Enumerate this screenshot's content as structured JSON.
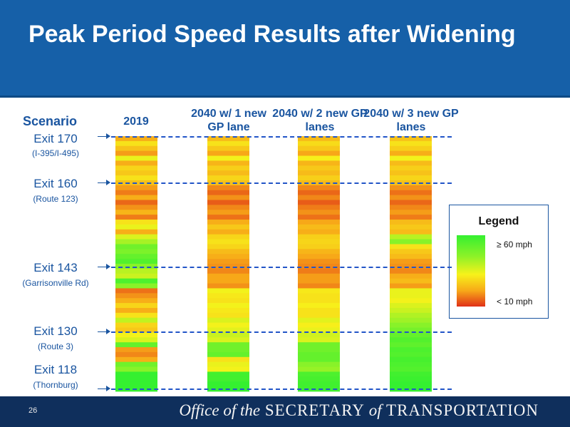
{
  "slide": {
    "title": "Peak Period Speed Results after Widening",
    "page_number": "26"
  },
  "footer": {
    "org_prefix": "Office of the",
    "org_main": "SECRETARY",
    "org_of": "of",
    "org_end": "TRANSPORTATION"
  },
  "colors": {
    "title_bar": "#1660a8",
    "footer": "#0f2f5c",
    "label_blue": "#1a55a0",
    "dash_line": "#2255c8"
  },
  "chart_data": {
    "type": "heatmap",
    "row_axis_label": "Scenario",
    "columns": [
      "2019",
      "2040 w/ 1 new GP lane",
      "2040 w/ 2 new GP lanes",
      "2040 w/ 3 new GP lanes"
    ],
    "exits": [
      {
        "name": "Exit 170",
        "sub": "(I-395/I-495)"
      },
      {
        "name": "Exit 160",
        "sub": "(Route 123)"
      },
      {
        "name": "Exit 143",
        "sub": "(Garrisonville Rd)"
      },
      {
        "name": "Exit 130",
        "sub": "(Route 3)"
      },
      {
        "name": "Exit 118",
        "sub": "(Thornburg)"
      }
    ],
    "legend": {
      "title": "Legend",
      "high_label": "≥ 60 mph",
      "low_label": "< 10 mph"
    },
    "speed_scale": {
      "min_mph": 10,
      "max_mph": 60
    },
    "segments_mph": {
      "2019": [
        22,
        30,
        25,
        20,
        34,
        22,
        28,
        26,
        30,
        25,
        20,
        17,
        22,
        15,
        19,
        23,
        17,
        30,
        34,
        22,
        36,
        42,
        50,
        48,
        52,
        55,
        46,
        40,
        38,
        56,
        46,
        16,
        19,
        22,
        28,
        22,
        30,
        39,
        28,
        26,
        33,
        36,
        52,
        20,
        18,
        22,
        50,
        46,
        60,
        60,
        60,
        60
      ],
      "2040 w/ 1": [
        24,
        30,
        26,
        21,
        33,
        23,
        27,
        24,
        28,
        25,
        18,
        15,
        19,
        14,
        18,
        20,
        16,
        22,
        26,
        22,
        28,
        30,
        28,
        24,
        22,
        20,
        19,
        18,
        21,
        21,
        19,
        33,
        31,
        30,
        33,
        31,
        30,
        36,
        33,
        35,
        38,
        36,
        50,
        50,
        52,
        30,
        34,
        33,
        58,
        58,
        60,
        60
      ],
      "2040 w/ 2": [
        24,
        29,
        26,
        21,
        32,
        23,
        26,
        24,
        27,
        24,
        18,
        15,
        18,
        14,
        17,
        19,
        16,
        21,
        24,
        22,
        27,
        28,
        27,
        23,
        21,
        19,
        18,
        17,
        20,
        20,
        18,
        31,
        30,
        30,
        32,
        30,
        30,
        35,
        32,
        34,
        37,
        36,
        50,
        50,
        52,
        52,
        46,
        44,
        56,
        57,
        58,
        58
      ],
      "2040 w/ 3": [
        25,
        30,
        27,
        22,
        33,
        24,
        27,
        25,
        28,
        25,
        19,
        16,
        19,
        15,
        18,
        20,
        17,
        24,
        26,
        24,
        40,
        46,
        30,
        26,
        24,
        20,
        19,
        18,
        22,
        24,
        20,
        34,
        34,
        33,
        36,
        38,
        41,
        43,
        46,
        49,
        52,
        55,
        53,
        56,
        55,
        57,
        56,
        55,
        58,
        59,
        60,
        60
      ]
    }
  }
}
